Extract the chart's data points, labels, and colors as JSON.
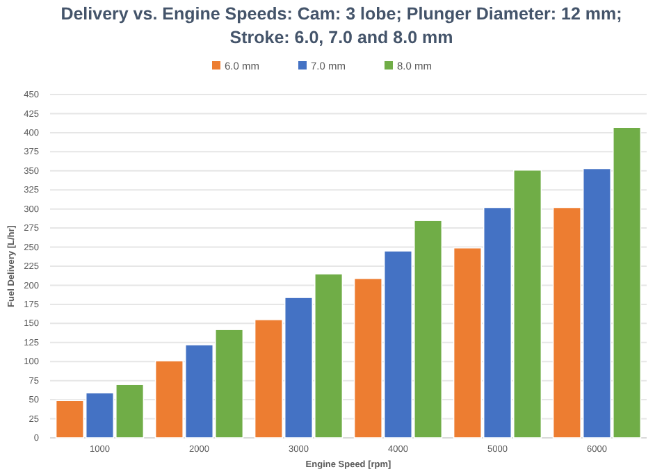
{
  "chart_data": {
    "type": "bar",
    "title": "Delivery vs. Engine Speeds: Cam: 3 lobe; Plunger Diameter: 12 mm; Stroke: 6.0, 7.0 and 8.0 mm",
    "xlabel": "Engine Speed [rpm]",
    "ylabel": "Fuel Delivery [L/hr]",
    "categories": [
      "1000",
      "2000",
      "3000",
      "4000",
      "5000",
      "6000"
    ],
    "series": [
      {
        "name": "6.0 mm",
        "color": "#ed7d31",
        "values": [
          49,
          101,
          155,
          209,
          249,
          302
        ]
      },
      {
        "name": "7.0 mm",
        "color": "#4472c4",
        "values": [
          59,
          122,
          184,
          245,
          302,
          353
        ]
      },
      {
        "name": "8.0 mm",
        "color": "#70ad47",
        "values": [
          70,
          142,
          215,
          285,
          351,
          407
        ]
      }
    ],
    "ylim": [
      0,
      450
    ],
    "yticks": [
      0,
      25,
      50,
      75,
      100,
      125,
      150,
      175,
      200,
      225,
      250,
      275,
      300,
      325,
      350,
      375,
      400,
      425,
      450
    ],
    "grid": "y",
    "legend": "top"
  }
}
